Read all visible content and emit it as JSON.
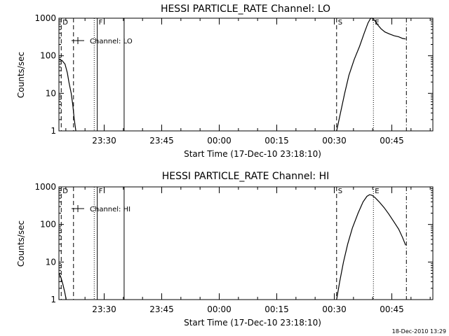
{
  "footer": {
    "timestamp": "18-Dec-2010 13:29"
  },
  "chart_data": [
    {
      "type": "line",
      "title": "HESSI PARTICLE_RATE Channel: LO",
      "xlabel": "Start Time (17-Dec-10 23:18:10)",
      "ylabel": "Counts/sec",
      "yscale": "log",
      "ylim": [
        1,
        1000
      ],
      "xlim_minutes": [
        0,
        97.5
      ],
      "xticks": [
        {
          "t": 11.8,
          "label": "23:30"
        },
        {
          "t": 26.8,
          "label": "23:45"
        },
        {
          "t": 41.8,
          "label": "00:00"
        },
        {
          "t": 56.8,
          "label": "00:15"
        },
        {
          "t": 71.8,
          "label": "00:30"
        },
        {
          "t": 86.8,
          "label": "00:45"
        }
      ],
      "yticks": [
        {
          "v": 1,
          "label": "1"
        },
        {
          "v": 10,
          "label": "10"
        },
        {
          "v": 100,
          "label": "100"
        },
        {
          "v": 1000,
          "label": "1000"
        }
      ],
      "legend": "Channel: LO",
      "legend_placement": "top-left",
      "markers": [
        {
          "label": "D",
          "t": 0.6,
          "style": "dashed"
        },
        {
          "t": 3.8,
          "style": "dashed"
        },
        {
          "t": 9.2,
          "style": "dotted"
        },
        {
          "label": "F",
          "t": 10.0,
          "style": "solid"
        },
        {
          "t": 17.0,
          "style": "solid"
        },
        {
          "label": "S",
          "t": 72.4,
          "style": "dashed"
        },
        {
          "label": "E",
          "t": 82.0,
          "style": "dotted"
        },
        {
          "t": 90.6,
          "style": "dashdot"
        }
      ],
      "series": [
        {
          "segments": [
            [
              [
                0,
                80
              ],
              [
                0.8,
                75
              ],
              [
                1.6,
                60
              ],
              [
                2.2,
                35
              ],
              [
                2.6,
                20
              ],
              [
                3.2,
                10
              ],
              [
                3.6,
                5
              ],
              [
                4.0,
                2
              ],
              [
                4.4,
                1
              ]
            ],
            [
              [
                72.4,
                1
              ],
              [
                73.4,
                3
              ],
              [
                74.5,
                10
              ],
              [
                75.6,
                30
              ],
              [
                77.0,
                80
              ],
              [
                78.4,
                180
              ],
              [
                79.6,
                400
              ],
              [
                80.6,
                750
              ],
              [
                81.3,
                1000
              ],
              [
                81.8,
                1000
              ],
              [
                82.4,
                850
              ],
              [
                83.2,
                650
              ],
              [
                84.0,
                520
              ],
              [
                85.0,
                430
              ],
              [
                86.2,
                380
              ],
              [
                87.4,
                340
              ],
              [
                88.6,
                320
              ],
              [
                89.6,
                290
              ],
              [
                90.4,
                280
              ]
            ]
          ]
        }
      ]
    },
    {
      "type": "line",
      "title": "HESSI PARTICLE_RATE Channel: HI",
      "xlabel": "Start Time (17-Dec-10 23:18:10)",
      "ylabel": "Counts/sec",
      "yscale": "log",
      "ylim": [
        1,
        1000
      ],
      "xlim_minutes": [
        0,
        97.5
      ],
      "xticks": [
        {
          "t": 11.8,
          "label": "23:30"
        },
        {
          "t": 26.8,
          "label": "23:45"
        },
        {
          "t": 41.8,
          "label": "00:00"
        },
        {
          "t": 56.8,
          "label": "00:15"
        },
        {
          "t": 71.8,
          "label": "00:30"
        },
        {
          "t": 86.8,
          "label": "00:45"
        }
      ],
      "yticks": [
        {
          "v": 1,
          "label": "1"
        },
        {
          "v": 10,
          "label": "10"
        },
        {
          "v": 100,
          "label": "100"
        },
        {
          "v": 1000,
          "label": "1000"
        }
      ],
      "legend": "Channel: HI",
      "legend_placement": "top-left",
      "markers": [
        {
          "label": "D",
          "t": 0.6,
          "style": "dashed"
        },
        {
          "t": 3.8,
          "style": "dashed"
        },
        {
          "t": 9.2,
          "style": "dotted"
        },
        {
          "label": "F",
          "t": 10.0,
          "style": "solid"
        },
        {
          "t": 17.0,
          "style": "solid"
        },
        {
          "label": "S",
          "t": 72.4,
          "style": "dashed"
        },
        {
          "label": "E",
          "t": 82.0,
          "style": "dotted"
        },
        {
          "t": 90.6,
          "style": "dashdot"
        }
      ],
      "series": [
        {
          "segments": [
            [
              [
                0,
                5
              ],
              [
                0.5,
                4
              ],
              [
                1.0,
                2.6
              ],
              [
                1.5,
                1.6
              ],
              [
                1.9,
                1.0
              ]
            ],
            [
              [
                72.4,
                1
              ],
              [
                73.2,
                3
              ],
              [
                74.2,
                10
              ],
              [
                75.3,
                30
              ],
              [
                76.5,
                80
              ],
              [
                78.0,
                200
              ],
              [
                79.3,
                400
              ],
              [
                80.3,
                560
              ],
              [
                81.0,
                620
              ],
              [
                81.6,
                600
              ],
              [
                82.4,
                520
              ],
              [
                83.5,
                400
              ],
              [
                84.8,
                280
              ],
              [
                86.0,
                190
              ],
              [
                87.3,
                120
              ],
              [
                88.6,
                75
              ],
              [
                89.6,
                45
              ],
              [
                90.4,
                28
              ]
            ]
          ]
        }
      ]
    }
  ]
}
